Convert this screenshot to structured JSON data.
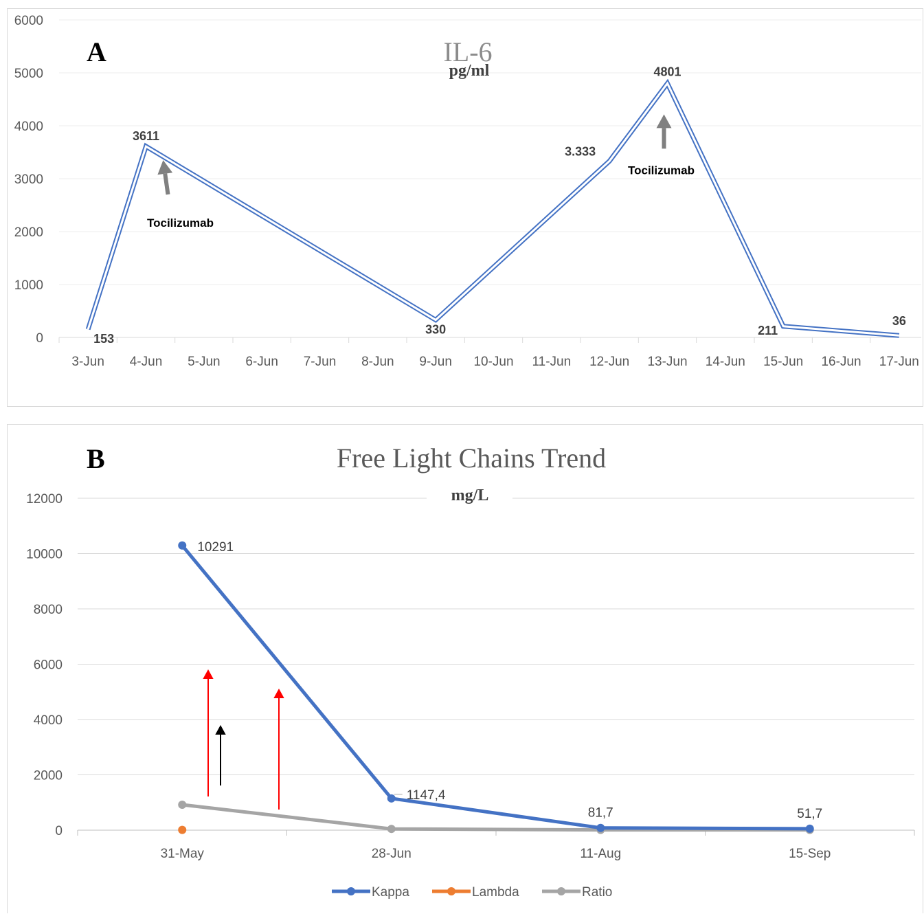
{
  "chart_data": [
    {
      "type": "line",
      "panel_letter": "A",
      "title": "IL-6",
      "subtitle": "pg/ml",
      "categories": [
        "3-Jun",
        "4-Jun",
        "5-Jun",
        "6-Jun",
        "7-Jun",
        "8-Jun",
        "9-Jun",
        "10-Jun",
        "11-Jun",
        "12-Jun",
        "13-Jun",
        "14-Jun",
        "15-Jun",
        "16-Jun",
        "17-Jun"
      ],
      "series": [
        {
          "color": "#4472C4",
          "points": [
            {
              "x": "3-Jun",
              "y": 153,
              "label": "153"
            },
            {
              "x": "4-Jun",
              "y": 3611,
              "label": "3611"
            },
            {
              "x": "9-Jun",
              "y": 330,
              "label": "330"
            },
            {
              "x": "12-Jun",
              "y": 3333,
              "label": "3.333"
            },
            {
              "x": "13-Jun",
              "y": 4801,
              "label": "4801"
            },
            {
              "x": "15-Jun",
              "y": 211,
              "label": "211"
            },
            {
              "x": "17-Jun",
              "y": 36,
              "label": "36"
            }
          ]
        }
      ],
      "yticks": [
        "0",
        "1000",
        "2000",
        "3000",
        "4000",
        "5000",
        "6000"
      ],
      "ylim": [
        0,
        6000
      ],
      "grid": true,
      "annotations": [
        {
          "text": "Tocilizumab",
          "x": "4-Jun",
          "arrow_color": "#808080"
        },
        {
          "text": "Tocilizumab",
          "x": "13-Jun",
          "arrow_color": "#808080"
        }
      ]
    },
    {
      "type": "line",
      "panel_letter": "B",
      "title": "Free Light Chains Trend",
      "subtitle": "mg/L",
      "categories": [
        "31-May",
        "28-Jun",
        "11-Aug",
        "15-Sep"
      ],
      "series": [
        {
          "name": "Kappa",
          "color": "#4472C4",
          "values": [
            10291,
            1147.4,
            81.7,
            51.7
          ],
          "labels": [
            "10291",
            "1147,4",
            "81,7",
            "51,7"
          ]
        },
        {
          "name": "Lambda",
          "color": "#ED7D31",
          "values": [
            10,
            null,
            null,
            null
          ]
        },
        {
          "name": "Ratio",
          "color": "#A5A5A5",
          "values": [
            920,
            45,
            10,
            10
          ]
        }
      ],
      "yticks": [
        "0",
        "2000",
        "4000",
        "6000",
        "8000",
        "10000",
        "12000"
      ],
      "ylim": [
        0,
        12000
      ],
      "grid": true,
      "legend_position": "bottom",
      "annotations": [
        {
          "type": "arrow",
          "color": "#FF0000"
        },
        {
          "type": "arrow",
          "color": "#FF0000"
        },
        {
          "type": "arrow",
          "color": "#000000"
        }
      ]
    }
  ]
}
